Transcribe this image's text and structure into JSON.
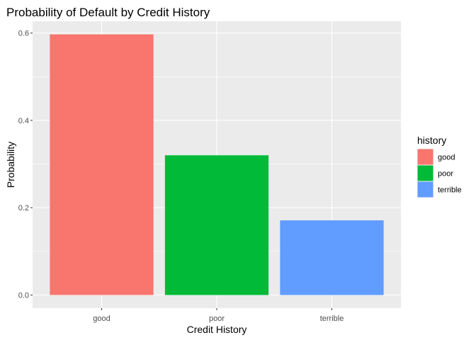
{
  "chart_data": {
    "type": "bar",
    "title": "Probability of Default by Credit History",
    "xlabel": "Credit History",
    "ylabel": "Probability",
    "categories": [
      "good",
      "poor",
      "terrible"
    ],
    "values": [
      0.597,
      0.32,
      0.171
    ],
    "colors": [
      "#F8766D",
      "#00BA38",
      "#619CFF"
    ],
    "ylim": [
      -0.03,
      0.627
    ],
    "yticks": [
      0.0,
      0.2,
      0.4,
      0.6
    ],
    "ytick_labels": [
      "0.0",
      "0.2",
      "0.4",
      "0.6"
    ],
    "grid": true,
    "panel_background": "#EBEBEB",
    "grid_color": "#FFFFFF",
    "legend": {
      "title": "history",
      "position": "right",
      "items": [
        "good",
        "poor",
        "terrible"
      ]
    }
  }
}
